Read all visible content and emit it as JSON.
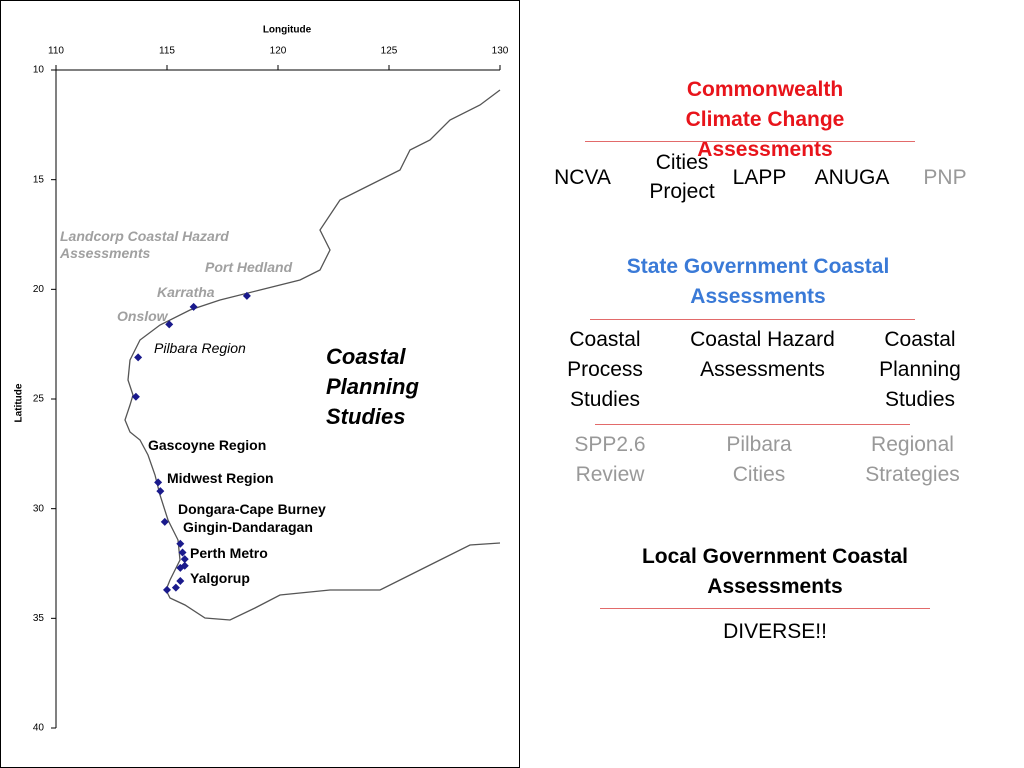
{
  "map": {
    "x_label": "Longitude",
    "y_label": "Latitude",
    "xlim": [
      110,
      130
    ],
    "ylim": [
      10,
      40
    ],
    "xticks": [
      110,
      115,
      120,
      125,
      130
    ],
    "yticks": [
      10,
      15,
      20,
      25,
      30,
      35,
      40
    ],
    "labels": [
      "Landcorp Coastal Hazard Assessments",
      "Port Hedland",
      "Karratha",
      "Onslow",
      "Pilbara Region",
      "Coastal Planning Studies",
      "Gascoyne Region",
      "Midwest Region",
      "Dongara-Cape Burney",
      "Gingin-Dandaragan",
      "Perth Metro",
      "Yalgorup"
    ],
    "sites": [
      {
        "lon": 118.6,
        "lat": 20.3
      },
      {
        "lon": 116.2,
        "lat": 20.8
      },
      {
        "lon": 115.1,
        "lat": 21.6
      },
      {
        "lon": 113.7,
        "lat": 23.1
      },
      {
        "lon": 113.6,
        "lat": 24.9
      },
      {
        "lon": 114.6,
        "lat": 28.8
      },
      {
        "lon": 114.7,
        "lat": 29.2
      },
      {
        "lon": 114.9,
        "lat": 30.6
      },
      {
        "lon": 115.6,
        "lat": 31.6
      },
      {
        "lon": 115.7,
        "lat": 32.0
      },
      {
        "lon": 115.8,
        "lat": 32.3
      },
      {
        "lon": 115.8,
        "lat": 32.6
      },
      {
        "lon": 115.6,
        "lat": 32.7
      },
      {
        "lon": 115.6,
        "lat": 33.3
      },
      {
        "lon": 115.4,
        "lat": 33.6
      },
      {
        "lon": 115.0,
        "lat": 33.7
      }
    ]
  },
  "commonwealth": {
    "heading": "Commonwealth Climate Change Assessments",
    "items": [
      "NCVA",
      "Cities Project",
      "LAPP",
      "ANUGA",
      "PNP"
    ]
  },
  "state": {
    "heading": "State Government Coastal Assessments",
    "items": [
      "Coastal Process Studies",
      "Coastal Hazard Assessments",
      "Coastal Planning Studies"
    ],
    "sub_items": [
      "SPP2.6 Review",
      "Pilbara Cities",
      "Regional Strategies"
    ]
  },
  "local": {
    "heading": "Local Government Coastal Assessments",
    "items": [
      "DIVERSE!!"
    ]
  }
}
